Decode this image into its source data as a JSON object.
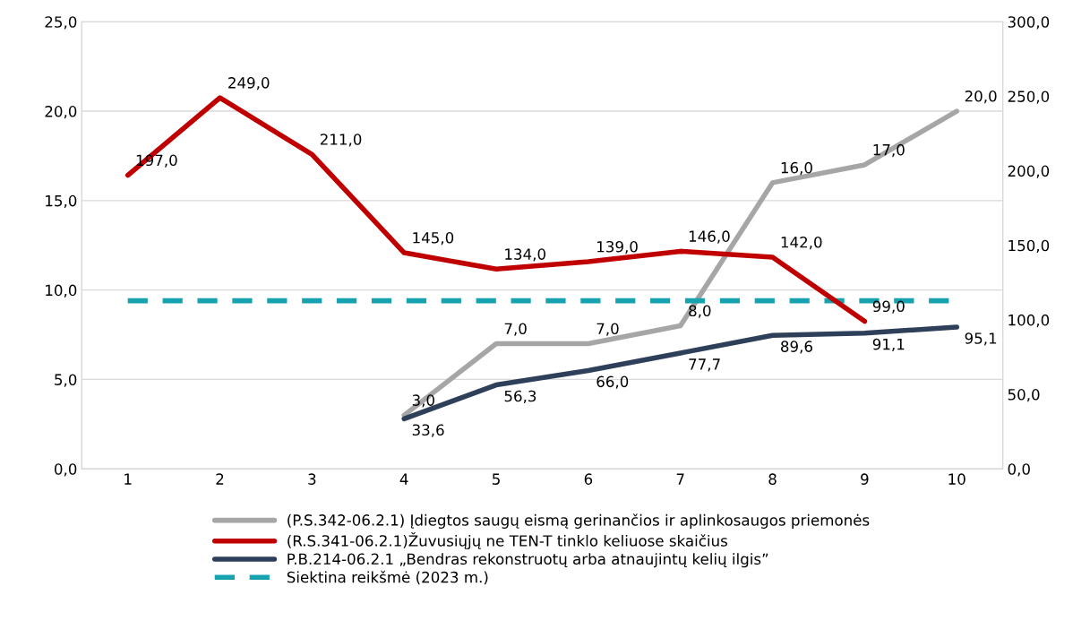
{
  "chart_data": {
    "type": "line",
    "categories": [
      "1",
      "2",
      "3",
      "4",
      "5",
      "6",
      "7",
      "8",
      "9",
      "10"
    ],
    "ylim": [
      0,
      25
    ],
    "yticks": [
      {
        "value": 0,
        "label": "0,0"
      },
      {
        "value": 5,
        "label": "5,0"
      },
      {
        "value": 10,
        "label": "10,0"
      },
      {
        "value": 15,
        "label": "15,0"
      },
      {
        "value": 20,
        "label": "20,0"
      },
      {
        "value": 25,
        "label": "25,0"
      }
    ],
    "y2lim": [
      0,
      300
    ],
    "y2ticks": [
      {
        "value": 0,
        "label": "0,0"
      },
      {
        "value": 50,
        "label": "50,0"
      },
      {
        "value": 100,
        "label": "100,0"
      },
      {
        "value": 150,
        "label": "150,0"
      },
      {
        "value": 200,
        "label": "200,0"
      },
      {
        "value": 250,
        "label": "250,0"
      },
      {
        "value": 300,
        "label": "300,0"
      }
    ],
    "grid": "y",
    "legend": "bottom",
    "marker": "none",
    "series": [
      {
        "name": "(P.S.342-06.2.1) Įdiegtos saugų eismą gerinančios ir aplinkosaugos priemonės",
        "color": "#a6a6a6",
        "values": [
          null,
          null,
          null,
          3,
          7,
          7,
          8,
          16,
          17,
          20
        ],
        "value_labels": [
          null,
          null,
          null,
          "3,0",
          "7,0",
          "7,0",
          "8,0",
          "16,0",
          "17,0",
          "20,0"
        ]
      },
      {
        "name": "(R.S.341-06.2.1)Žuvusiųjų ne TEN-T tinklo keliuose skaičius",
        "color": "#c00000",
        "axis": "y2",
        "values": [
          197,
          249,
          211,
          145,
          134,
          139,
          146,
          142,
          99,
          null
        ],
        "value_labels": [
          "197,0",
          "249,0",
          "211,0",
          "145,0",
          "134,0",
          "139,0",
          "146,0",
          "142,0",
          "99,0",
          null
        ]
      },
      {
        "name": "P.B.214-06.2.1 „Bendras rekonstruotų arba atnaujintų kelių ilgis”",
        "color": "#2e3f5a",
        "axis": "y2",
        "values": [
          null,
          null,
          null,
          33.6,
          56.3,
          66.0,
          77.7,
          89.6,
          91.1,
          95.1
        ],
        "value_labels": [
          null,
          null,
          null,
          "33,6",
          "56,3",
          "66,0",
          "77,7",
          "89,6",
          "91,1",
          "95,1"
        ]
      }
    ],
    "ref_lines": [
      {
        "axis": "y",
        "value": 9.4,
        "label": "Siektina reikšmė (2023 m.)",
        "color": "#17a2b0",
        "line_style": "dashed"
      }
    ]
  }
}
